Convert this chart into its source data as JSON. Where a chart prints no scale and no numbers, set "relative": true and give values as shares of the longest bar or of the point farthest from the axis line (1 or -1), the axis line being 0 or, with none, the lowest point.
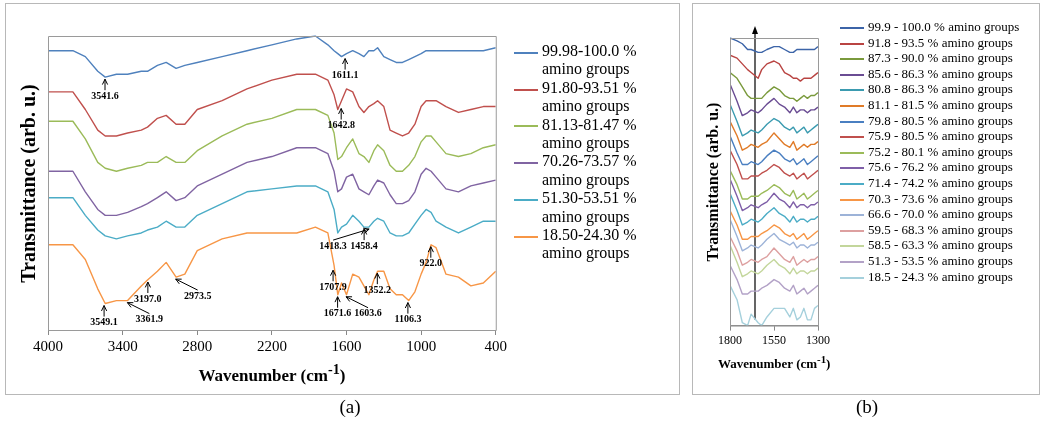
{
  "chart_data": [
    {
      "type": "line",
      "relative": true,
      "xlabel": "Wavenumber (cm$^{-1}$)",
      "ylabel": "Transmittance (arb. u.)",
      "legend": "right",
      "grid": false,
      "marker": "none",
      "xlim": [
        4000,
        400
      ],
      "xticks": [
        4000,
        3400,
        2800,
        2200,
        1600,
        1000,
        400
      ],
      "x": [
        4000,
        3800,
        3700,
        3600,
        3540,
        3450,
        3360,
        3250,
        3200,
        3120,
        3050,
        2970,
        2900,
        2800,
        2600,
        2400,
        2200,
        2000,
        1850,
        1750,
        1700,
        1670,
        1640,
        1600,
        1550,
        1500,
        1460,
        1420,
        1380,
        1350,
        1300,
        1250,
        1200,
        1150,
        1100,
        1050,
        1000,
        960,
        920,
        880,
        800,
        700,
        600,
        500,
        400
      ],
      "series": [
        {
          "name": "99.98-100.0 % amino groups",
          "color": "#4f81bd",
          "values": [
            0.95,
            0.95,
            0.93,
            0.88,
            0.86,
            0.87,
            0.87,
            0.88,
            0.88,
            0.9,
            0.91,
            0.89,
            0.9,
            0.91,
            0.93,
            0.95,
            0.97,
            0.99,
            1,
            0.97,
            0.95,
            0.94,
            0.93,
            0.94,
            0.95,
            0.94,
            0.93,
            0.95,
            0.95,
            0.96,
            0.93,
            0.92,
            0.91,
            0.91,
            0.92,
            0.93,
            0.94,
            0.95,
            0.95,
            0.95,
            0.95,
            0.95,
            0.95,
            0.95,
            0.96
          ]
        },
        {
          "name": "91.80-93.51 % amino groups",
          "color": "#c0504d",
          "values": [
            0.81,
            0.81,
            0.75,
            0.68,
            0.66,
            0.66,
            0.67,
            0.68,
            0.69,
            0.72,
            0.73,
            0.7,
            0.7,
            0.75,
            0.78,
            0.82,
            0.85,
            0.87,
            0.87,
            0.85,
            0.8,
            0.75,
            0.78,
            0.82,
            0.81,
            0.76,
            0.74,
            0.76,
            0.77,
            0.78,
            0.76,
            0.68,
            0.67,
            0.66,
            0.67,
            0.7,
            0.76,
            0.78,
            0.78,
            0.78,
            0.76,
            0.74,
            0.75,
            0.76,
            0.76
          ]
        },
        {
          "name": "81.13-81.47 % amino groups",
          "color": "#9bbb59",
          "values": [
            0.71,
            0.71,
            0.65,
            0.57,
            0.55,
            0.54,
            0.55,
            0.56,
            0.57,
            0.57,
            0.59,
            0.57,
            0.57,
            0.61,
            0.66,
            0.7,
            0.72,
            0.75,
            0.75,
            0.73,
            0.67,
            0.58,
            0.59,
            0.62,
            0.65,
            0.6,
            0.59,
            0.57,
            0.61,
            0.63,
            0.61,
            0.56,
            0.54,
            0.54,
            0.56,
            0.59,
            0.64,
            0.66,
            0.66,
            0.64,
            0.6,
            0.59,
            0.6,
            0.62,
            0.63
          ]
        },
        {
          "name": "70.26-73.57 % amino groups",
          "color": "#8064a2",
          "values": [
            0.54,
            0.54,
            0.47,
            0.41,
            0.39,
            0.39,
            0.4,
            0.42,
            0.43,
            0.45,
            0.47,
            0.44,
            0.45,
            0.49,
            0.53,
            0.57,
            0.59,
            0.62,
            0.62,
            0.6,
            0.54,
            0.47,
            0.48,
            0.52,
            0.53,
            0.48,
            0.47,
            0.46,
            0.49,
            0.51,
            0.5,
            0.46,
            0.43,
            0.43,
            0.44,
            0.47,
            0.53,
            0.55,
            0.54,
            0.52,
            0.48,
            0.47,
            0.49,
            0.5,
            0.51
          ]
        },
        {
          "name": "51.30-53.51 % amino groups",
          "color": "#4bacc6",
          "values": [
            0.45,
            0.45,
            0.39,
            0.34,
            0.32,
            0.31,
            0.32,
            0.33,
            0.34,
            0.35,
            0.37,
            0.35,
            0.35,
            0.39,
            0.43,
            0.47,
            0.48,
            0.49,
            0.49,
            0.47,
            0.41,
            0.33,
            0.35,
            0.36,
            0.39,
            0.37,
            0.35,
            0.35,
            0.37,
            0.38,
            0.37,
            0.33,
            0.32,
            0.32,
            0.33,
            0.36,
            0.39,
            0.41,
            0.4,
            0.37,
            0.35,
            0.33,
            0.35,
            0.37,
            0.37
          ]
        },
        {
          "name": "18.50-24.30 % amino groups",
          "color": "#f79646",
          "values": [
            0.29,
            0.29,
            0.24,
            0.14,
            0.09,
            0.1,
            0.1,
            0.15,
            0.17,
            0.2,
            0.23,
            0.18,
            0.19,
            0.27,
            0.31,
            0.33,
            0.33,
            0.33,
            0.35,
            0.33,
            0.22,
            0.12,
            0.16,
            0.12,
            0.19,
            0.18,
            0.15,
            0.12,
            0.17,
            0.2,
            0.2,
            0.14,
            0.12,
            0.12,
            0.1,
            0.13,
            0.19,
            0.23,
            0.29,
            0.28,
            0.19,
            0.18,
            0.15,
            0.16,
            0.2
          ]
        }
      ],
      "annotations": [
        {
          "text": "3541.6",
          "x": 3541.6,
          "y": 0.86
        },
        {
          "text": "1611.1",
          "x": 1611.1,
          "y": 0.93
        },
        {
          "text": "1642.8",
          "x": 1642.8,
          "y": 0.76
        },
        {
          "text": "1458.4",
          "x": 1458.4,
          "y": 0.35
        },
        {
          "text": "1418.3",
          "x": 1418.3,
          "y": 0.35
        },
        {
          "text": "3549.1",
          "x": 3549.1,
          "y": 0.09
        },
        {
          "text": "3361.9",
          "x": 3361.9,
          "y": 0.1
        },
        {
          "text": "3197.0",
          "x": 3197.0,
          "y": 0.17
        },
        {
          "text": "2973.5",
          "x": 2973.5,
          "y": 0.18
        },
        {
          "text": "1707.9",
          "x": 1707.9,
          "y": 0.21
        },
        {
          "text": "1671.6",
          "x": 1671.6,
          "y": 0.12
        },
        {
          "text": "1603.6",
          "x": 1603.6,
          "y": 0.12
        },
        {
          "text": "1352.2",
          "x": 1352.2,
          "y": 0.2
        },
        {
          "text": "1106.3",
          "x": 1106.3,
          "y": 0.1
        },
        {
          "text": "922.0",
          "x": 922.0,
          "y": 0.29
        },
        "(a)"
      ]
    },
    {
      "type": "line",
      "relative": true,
      "xlabel": "Wavenumber (cm$^{-1}$)",
      "ylabel": "Transmittance (arb. u.)",
      "legend": "right",
      "grid": false,
      "marker": "none",
      "xlim": [
        1800,
        1300
      ],
      "xticks": [
        1800,
        1550,
        1300
      ],
      "x": [
        1800,
        1760,
        1730,
        1700,
        1680,
        1640,
        1620,
        1590,
        1550,
        1520,
        1490,
        1460,
        1440,
        1420,
        1400,
        1380,
        1360,
        1340,
        1320,
        1300
      ],
      "series": [
        {
          "name": "99.9 - 100.0 % amino groups",
          "color": "#3c64a8",
          "values": [
            1,
            0.99,
            0.98,
            0.96,
            0.96,
            0.95,
            0.95,
            0.96,
            0.97,
            0.97,
            0.96,
            0.95,
            0.95,
            0.96,
            0.96,
            0.96,
            0.96,
            0.96,
            0.96,
            0.97
          ]
        },
        {
          "name": "91.8 - 93.5 % amino groups",
          "color": "#b94442",
          "values": [
            0.94,
            0.93,
            0.91,
            0.89,
            0.88,
            0.86,
            0.89,
            0.91,
            0.92,
            0.91,
            0.88,
            0.87,
            0.86,
            0.86,
            0.85,
            0.86,
            0.86,
            0.86,
            0.87,
            0.88
          ]
        },
        {
          "name": "87.3 - 90.0 % amino groups",
          "color": "#7a9a3c",
          "values": [
            0.88,
            0.86,
            0.83,
            0.8,
            0.79,
            0.79,
            0.79,
            0.81,
            0.83,
            0.82,
            0.8,
            0.79,
            0.79,
            0.78,
            0.79,
            0.8,
            0.79,
            0.8,
            0.8,
            0.81
          ]
        },
        {
          "name": "85.6 - 86.3 % amino groups",
          "color": "#6a4c93",
          "values": [
            0.84,
            0.78,
            0.73,
            0.74,
            0.75,
            0.74,
            0.75,
            0.77,
            0.79,
            0.77,
            0.76,
            0.74,
            0.76,
            0.74,
            0.75,
            0.75,
            0.74,
            0.75,
            0.75,
            0.76
          ]
        },
        {
          "name": "80.8 - 86.3 % amino groups",
          "color": "#3b9bb0",
          "values": [
            0.77,
            0.71,
            0.66,
            0.67,
            0.68,
            0.67,
            0.68,
            0.7,
            0.72,
            0.71,
            0.69,
            0.68,
            0.69,
            0.67,
            0.68,
            0.69,
            0.67,
            0.68,
            0.69,
            0.7
          ]
        },
        {
          "name": "81.1 - 81.5 % amino groups",
          "color": "#e07b28",
          "values": [
            0.71,
            0.66,
            0.61,
            0.62,
            0.63,
            0.62,
            0.63,
            0.64,
            0.67,
            0.65,
            0.63,
            0.62,
            0.64,
            0.61,
            0.62,
            0.63,
            0.62,
            0.63,
            0.63,
            0.64
          ]
        },
        {
          "name": "79.8 - 80.5 % amino groups",
          "color": "#4a7fc1",
          "values": [
            0.66,
            0.6,
            0.56,
            0.56,
            0.57,
            0.56,
            0.57,
            0.59,
            0.61,
            0.6,
            0.58,
            0.57,
            0.58,
            0.56,
            0.57,
            0.58,
            0.56,
            0.57,
            0.58,
            0.59
          ]
        },
        {
          "name": "75.9 - 80.5 % amino groups",
          "color": "#c0504d",
          "values": [
            0.61,
            0.56,
            0.51,
            0.51,
            0.52,
            0.52,
            0.53,
            0.54,
            0.56,
            0.55,
            0.53,
            0.52,
            0.53,
            0.51,
            0.52,
            0.53,
            0.51,
            0.52,
            0.53,
            0.54
          ]
        },
        {
          "name": "75.2 - 80.1 % amino groups",
          "color": "#9bbb59",
          "values": [
            0.54,
            0.49,
            0.44,
            0.44,
            0.45,
            0.45,
            0.46,
            0.47,
            0.49,
            0.48,
            0.46,
            0.45,
            0.47,
            0.44,
            0.45,
            0.46,
            0.44,
            0.45,
            0.46,
            0.47
          ]
        },
        {
          "name": "75.6 - 76.2 % amino groups",
          "color": "#7f5fa8",
          "values": [
            0.51,
            0.45,
            0.4,
            0.41,
            0.42,
            0.41,
            0.42,
            0.43,
            0.46,
            0.44,
            0.43,
            0.41,
            0.43,
            0.41,
            0.42,
            0.42,
            0.41,
            0.42,
            0.42,
            0.43
          ]
        },
        {
          "name": "71.4 - 74.2 % amino groups",
          "color": "#4bacc6",
          "values": [
            0.46,
            0.4,
            0.35,
            0.36,
            0.37,
            0.36,
            0.37,
            0.39,
            0.41,
            0.39,
            0.38,
            0.36,
            0.38,
            0.36,
            0.37,
            0.37,
            0.36,
            0.37,
            0.37,
            0.38
          ]
        },
        {
          "name": "70.3 - 73.6 % amino groups",
          "color": "#f79646",
          "values": [
            0.4,
            0.35,
            0.3,
            0.3,
            0.31,
            0.31,
            0.32,
            0.33,
            0.35,
            0.34,
            0.32,
            0.31,
            0.32,
            0.3,
            0.31,
            0.32,
            0.3,
            0.31,
            0.32,
            0.33
          ]
        },
        {
          "name": "66.6 - 70.0 % amino groups",
          "color": "#9db3d8",
          "values": [
            0.37,
            0.31,
            0.26,
            0.27,
            0.28,
            0.27,
            0.28,
            0.3,
            0.32,
            0.3,
            0.29,
            0.28,
            0.29,
            0.27,
            0.28,
            0.28,
            0.27,
            0.28,
            0.28,
            0.29
          ]
        },
        {
          "name": "59.5 - 68.3 % amino groups",
          "color": "#dda0a0",
          "values": [
            0.31,
            0.26,
            0.21,
            0.22,
            0.23,
            0.22,
            0.23,
            0.24,
            0.27,
            0.25,
            0.23,
            0.22,
            0.24,
            0.21,
            0.22,
            0.23,
            0.22,
            0.23,
            0.23,
            0.24
          ]
        },
        {
          "name": "58.5 - 63.3 % amino groups",
          "color": "#c3d69b",
          "values": [
            0.28,
            0.22,
            0.17,
            0.18,
            0.19,
            0.18,
            0.19,
            0.21,
            0.23,
            0.21,
            0.2,
            0.18,
            0.2,
            0.18,
            0.19,
            0.19,
            0.18,
            0.19,
            0.19,
            0.2
          ]
        },
        {
          "name": "51.3 - 53.5 % amino groups",
          "color": "#b3a2c7",
          "values": [
            0.21,
            0.16,
            0.11,
            0.11,
            0.12,
            0.12,
            0.13,
            0.14,
            0.16,
            0.15,
            0.13,
            0.12,
            0.14,
            0.11,
            0.12,
            0.13,
            0.11,
            0.12,
            0.13,
            0.14
          ]
        },
        {
          "name": "18.5 - 24.3 % amino groups",
          "color": "#a5d0dc",
          "values": [
            0.14,
            0.09,
            0.01,
            0,
            0.04,
            0.01,
            0,
            0.03,
            0.06,
            0.06,
            0.06,
            0.03,
            0.06,
            0.02,
            0.03,
            0.06,
            0.02,
            0.02,
            0.06,
            0.07
          ]
        }
      ],
      "annotations": [
        "(b)"
      ]
    }
  ]
}
